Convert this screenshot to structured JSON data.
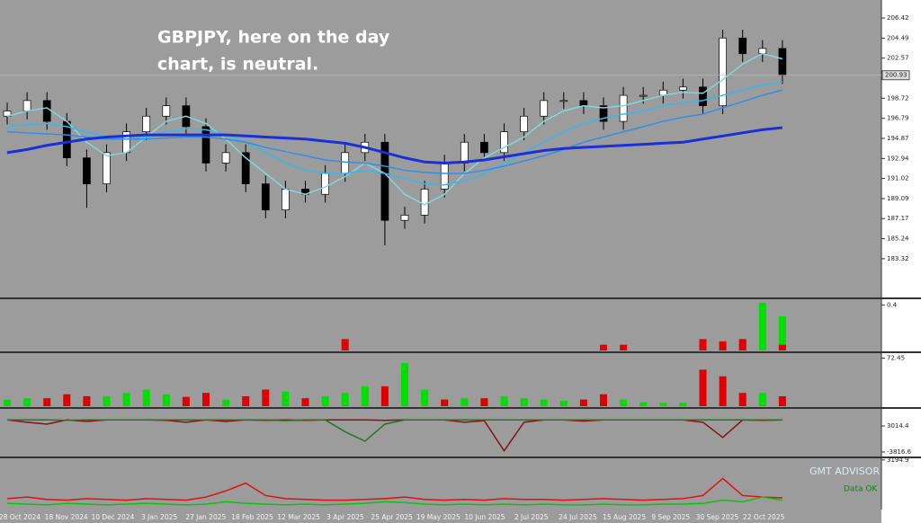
{
  "chart_data": [
    {
      "type": "candlestick",
      "annotation": [
        "GBPJPY, here on the day",
        "chart, is neutral."
      ],
      "xtick_labels": [
        "28 Oct 2024",
        "18 Nov 2024",
        "10 Dec 2024",
        "3 Jan 2025",
        "27 Jan 2025",
        "18 Feb 2025",
        "12 Mar 2025",
        "3 Apr 2025",
        "25 Apr 2025",
        "19 May 2025",
        "10 Jun 2025",
        "2 Jul 2025",
        "24 Jul 2025",
        "15 Aug 2025",
        "9 Sep 2025",
        "30 Sep 2025",
        "22 Oct 2025"
      ],
      "open": [
        197,
        197.5,
        198.5,
        196.5,
        193,
        190.5,
        193.5,
        195.5,
        197,
        198,
        196,
        192.5,
        193.5,
        190.5,
        188,
        190,
        189.5,
        191.5,
        193.5,
        194.5,
        187,
        187.5,
        190,
        192.5,
        194.5,
        193.5,
        195.5,
        197,
        198.5,
        198.5,
        198,
        196.5,
        199,
        199,
        199.5,
        199.8,
        198,
        204.5,
        203,
        203.5
      ],
      "high": [
        198.3,
        199.3,
        199.3,
        197.3,
        193.8,
        194.3,
        196.3,
        197.8,
        198.8,
        198.8,
        196.8,
        194.3,
        194.3,
        191.3,
        190.8,
        190.8,
        192.3,
        194.3,
        195.3,
        195.3,
        188.3,
        190.8,
        193.3,
        195.3,
        195.3,
        196.3,
        197.8,
        199.3,
        199.3,
        199.3,
        198.8,
        199.8,
        199.8,
        200.3,
        200.6,
        200.6,
        205.3,
        205.3,
        204.3,
        204.3
      ],
      "low": [
        196.2,
        196.7,
        195.7,
        192.2,
        188.2,
        189.7,
        192.7,
        194.7,
        196.2,
        195.2,
        191.7,
        191.7,
        189.7,
        187.2,
        187.2,
        188.7,
        188.7,
        190.7,
        192.7,
        184.6,
        186.2,
        186.7,
        189.2,
        191.7,
        192.7,
        192.7,
        194.7,
        196.2,
        197.7,
        197.2,
        195.7,
        195.7,
        198.2,
        198.2,
        198.7,
        197.2,
        197.2,
        202.2,
        202.2,
        200.1
      ],
      "close": [
        197.5,
        198.5,
        196.5,
        193,
        190.5,
        193.5,
        195.5,
        197,
        198,
        196,
        192.5,
        193.5,
        190.5,
        188,
        190,
        189.5,
        191.5,
        193.5,
        194.5,
        187,
        187.5,
        190,
        192.5,
        194.5,
        193.5,
        195.5,
        197,
        198.5,
        198.5,
        198,
        196.5,
        199,
        199,
        199.5,
        199.8,
        198,
        204.5,
        203,
        203.5,
        200.93
      ],
      "lines": [
        {
          "color": "#7fd8e0",
          "values": [
            197,
            197.5,
            197.8,
            196.5,
            194.5,
            193.2,
            193.5,
            195,
            196.5,
            197,
            196.3,
            194.8,
            193,
            191.5,
            190,
            189.5,
            190.2,
            191.2,
            192.5,
            191.5,
            189.5,
            188.5,
            189.5,
            191.5,
            193,
            194,
            195,
            196.5,
            197.5,
            198,
            197.8,
            198,
            198.5,
            199,
            199.3,
            199.2,
            200.5,
            202,
            203,
            202.5
          ]
        },
        {
          "color": "#35b8f0",
          "values": [
            196,
            196.2,
            196.3,
            196,
            195.5,
            195,
            194.8,
            195,
            195.5,
            195.8,
            195.7,
            195.2,
            194.5,
            193.5,
            192.5,
            191.8,
            191.5,
            191.5,
            191.8,
            191.5,
            191,
            190.5,
            190.4,
            190.8,
            191.5,
            192.5,
            193.5,
            194.5,
            195.5,
            196.3,
            196.8,
            197.2,
            197.5,
            198,
            198.3,
            198.5,
            199,
            199.5,
            200,
            200.3
          ]
        },
        {
          "color": "#2f8fe6",
          "values": [
            195.5,
            195.4,
            195.3,
            195.2,
            195,
            194.8,
            194.8,
            194.8,
            194.9,
            195,
            195,
            194.8,
            194.5,
            194,
            193.6,
            193.2,
            192.8,
            192.6,
            192.5,
            192.2,
            191.8,
            191.6,
            191.5,
            191.5,
            191.8,
            192.2,
            192.7,
            193.2,
            193.8,
            194.5,
            195,
            195.5,
            196,
            196.5,
            196.9,
            197.2,
            197.8,
            198.4,
            199,
            199.5
          ]
        },
        {
          "color": "#1a2fd6",
          "values": [
            193.5,
            193.8,
            194.2,
            194.5,
            194.8,
            195,
            195.1,
            195.2,
            195.2,
            195.2,
            195.2,
            195.2,
            195.1,
            195,
            194.9,
            194.8,
            194.6,
            194.4,
            194,
            193.5,
            193,
            192.6,
            192.5,
            192.6,
            192.8,
            193.1,
            193.4,
            193.7,
            193.9,
            194,
            194.1,
            194.2,
            194.3,
            194.4,
            194.5,
            194.8,
            195.1,
            195.4,
            195.7,
            195.9
          ]
        }
      ],
      "current_price": 200.93,
      "ylim": [
        179.6,
        208.15
      ],
      "yticks": [
        206.42,
        204.49,
        202.57,
        198.72,
        196.79,
        194.87,
        192.94,
        191.02,
        189.09,
        187.17,
        185.24,
        183.32
      ]
    },
    {
      "type": "bar",
      "ylim": [
        0,
        0.45
      ],
      "yticks": [
        0.4
      ],
      "series": [
        {
          "color": "#00e000",
          "values": [
            0,
            0,
            0,
            0,
            0,
            0,
            0,
            0,
            0,
            0,
            0,
            0,
            0,
            0,
            0,
            0,
            0,
            0,
            0,
            0,
            0,
            0,
            0,
            0,
            0,
            0,
            0,
            0,
            0,
            0,
            0,
            0,
            0,
            0,
            0,
            0,
            0.05,
            0.1,
            0.42,
            0.3
          ]
        },
        {
          "color": "#e00000",
          "values": [
            0,
            0,
            0,
            0,
            0,
            0,
            0,
            0,
            0,
            0,
            0,
            0,
            0,
            0,
            0,
            0,
            0,
            0.1,
            0,
            0,
            0,
            0,
            0,
            0,
            0,
            0,
            0,
            0,
            0,
            0,
            0.05,
            0.05,
            0,
            0,
            0,
            0.1,
            0.08,
            0.1,
            0,
            0.05
          ]
        }
      ]
    },
    {
      "type": "bar",
      "ylim": [
        0,
        80
      ],
      "yticks": [
        72.45
      ],
      "series": [
        {
          "color": "#00e000",
          "values": [
            10,
            12,
            5,
            0,
            8,
            15,
            20,
            25,
            18,
            0,
            0,
            10,
            0,
            0,
            22,
            10,
            15,
            20,
            30,
            0,
            65,
            25,
            10,
            12,
            8,
            15,
            12,
            10,
            8,
            5,
            0,
            10,
            6,
            5,
            5,
            0,
            0,
            5,
            20,
            10
          ]
        },
        {
          "color": "#e00000",
          "values": [
            0,
            0,
            12,
            18,
            15,
            0,
            0,
            0,
            0,
            14,
            20,
            0,
            15,
            25,
            0,
            12,
            0,
            0,
            0,
            30,
            0,
            0,
            10,
            0,
            12,
            0,
            0,
            0,
            0,
            10,
            18,
            0,
            0,
            0,
            0,
            55,
            45,
            20,
            0,
            15
          ]
        }
      ]
    },
    {
      "type": "line",
      "ylim": [
        -5000,
        7500
      ],
      "yticks": [
        3014.4,
        -3816.6
      ],
      "series": [
        {
          "color": "#8b1010",
          "values": [
            4600,
            4000,
            3500,
            4600,
            4200,
            4600,
            4600,
            4600,
            4500,
            4000,
            4600,
            4200,
            4600,
            4500,
            4600,
            4500,
            4600,
            4600,
            4600,
            4500,
            4600,
            4600,
            4600,
            4000,
            4400,
            -3500,
            4000,
            4600,
            4600,
            4300,
            4600,
            4600,
            4600,
            4600,
            4600,
            4000,
            0,
            4600,
            4500,
            4600
          ]
        },
        {
          "color": "#1f7a1f",
          "values": [
            4600,
            4600,
            4600,
            4500,
            4600,
            4600,
            4600,
            4600,
            4600,
            4600,
            4600,
            4600,
            4600,
            4600,
            4400,
            4600,
            4600,
            1500,
            -1000,
            3500,
            4600,
            4600,
            4600,
            4600,
            4600,
            4600,
            4600,
            4600,
            4600,
            4600,
            4600,
            4600,
            4600,
            4600,
            4600,
            4600,
            4600,
            4600,
            4600,
            4600
          ]
        }
      ]
    },
    {
      "type": "line",
      "ylim": [
        0,
        3300
      ],
      "yticks": [
        3194.9
      ],
      "label": "GMT ADVISOR",
      "status": "Data OK",
      "series": [
        {
          "color": "#e01010",
          "values": [
            700,
            800,
            650,
            600,
            700,
            650,
            600,
            700,
            650,
            600,
            800,
            1200,
            1700,
            900,
            700,
            650,
            600,
            600,
            650,
            700,
            800,
            650,
            600,
            650,
            600,
            700,
            650,
            650,
            600,
            650,
            700,
            650,
            600,
            650,
            700,
            900,
            2000,
            900,
            800,
            750
          ]
        },
        {
          "color": "#10c010",
          "values": [
            400,
            350,
            300,
            400,
            350,
            300,
            350,
            400,
            350,
            300,
            350,
            500,
            400,
            350,
            300,
            350,
            300,
            350,
            400,
            500,
            450,
            350,
            300,
            350,
            300,
            350,
            300,
            350,
            300,
            300,
            350,
            300,
            300,
            350,
            350,
            400,
            600,
            500,
            800,
            600
          ]
        }
      ]
    }
  ]
}
